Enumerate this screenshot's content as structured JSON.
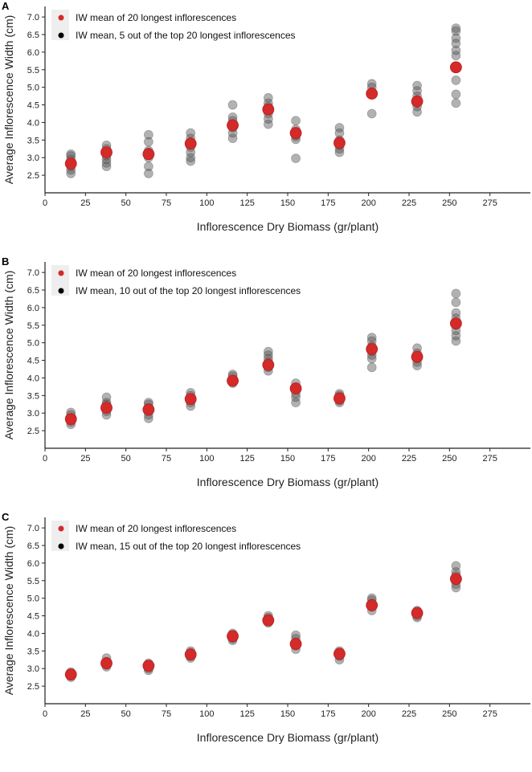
{
  "chart_data": [
    {
      "type": "scatter",
      "panel_label": "A",
      "xlabel": "Inflorescence Dry Biomass (gr/plant)",
      "ylabel": "Average Inflorescence Width (cm)",
      "xlim": [
        0,
        300
      ],
      "ylim": [
        2.0,
        7.3
      ],
      "xticks": [
        "0",
        "25",
        "50",
        "75",
        "100",
        "125",
        "150",
        "175",
        "200",
        "225",
        "250",
        "275"
      ],
      "yticks": [
        "2.5",
        "3.0",
        "3.5",
        "4.0",
        "4.5",
        "5.0",
        "5.5",
        "6.0",
        "6.5",
        "7.0"
      ],
      "legend": [
        "IW mean of 20 longest inflorescences",
        "IW mean, 5 out of the top 20 longest inflorescences"
      ],
      "colors": {
        "mean": "#d42a2a",
        "subsample": "#555555"
      },
      "x": [
        16,
        38,
        64,
        90,
        116,
        138,
        155,
        182,
        202,
        230,
        254
      ],
      "mean_values": [
        2.83,
        3.15,
        3.1,
        3.4,
        3.92,
        4.37,
        3.7,
        3.42,
        4.82,
        4.6,
        5.57
      ],
      "subsample_values": [
        [
          2.55,
          2.65,
          2.75,
          2.85,
          2.95,
          3.05,
          3.1
        ],
        [
          2.75,
          2.85,
          2.95,
          3.05,
          3.15,
          3.25,
          3.35
        ],
        [
          2.55,
          2.75,
          3.0,
          3.15,
          3.2,
          3.45,
          3.65
        ],
        [
          2.9,
          3.0,
          3.15,
          3.3,
          3.45,
          3.55,
          3.7
        ],
        [
          3.55,
          3.7,
          3.85,
          3.95,
          4.05,
          4.15,
          4.5
        ],
        [
          3.95,
          4.1,
          4.25,
          4.35,
          4.45,
          4.55,
          4.7
        ],
        [
          2.98,
          3.52,
          3.6,
          3.65,
          3.8,
          4.05
        ],
        [
          3.15,
          3.25,
          3.35,
          3.45,
          3.5,
          3.7,
          3.85
        ],
        [
          4.25,
          4.85,
          5.0,
          5.1
        ],
        [
          4.3,
          4.45,
          4.55,
          4.75,
          4.9,
          5.05
        ],
        [
          4.55,
          4.8,
          5.2,
          5.55,
          5.9,
          6.05,
          6.25,
          6.4,
          6.6,
          6.68
        ]
      ]
    },
    {
      "type": "scatter",
      "panel_label": "B",
      "xlabel": "Inflorescence Dry Biomass (gr/plant)",
      "ylabel": "Average Inflorescence Width (cm)",
      "xlim": [
        0,
        300
      ],
      "ylim": [
        2.0,
        7.3
      ],
      "xticks": [
        "0",
        "25",
        "50",
        "75",
        "100",
        "125",
        "150",
        "175",
        "200",
        "225",
        "250",
        "275"
      ],
      "yticks": [
        "2.5",
        "3.0",
        "3.5",
        "4.0",
        "4.5",
        "5.0",
        "5.5",
        "6.0",
        "6.5",
        "7.0"
      ],
      "legend": [
        "IW mean of 20 longest inflorescences",
        "IW mean, 10 out of the top 20 longest inflorescences"
      ],
      "colors": {
        "mean": "#d42a2a",
        "subsample": "#555555"
      },
      "x": [
        16,
        38,
        64,
        90,
        116,
        138,
        155,
        182,
        202,
        230,
        254
      ],
      "mean_values": [
        2.83,
        3.15,
        3.1,
        3.4,
        3.92,
        4.37,
        3.7,
        3.42,
        4.82,
        4.6,
        5.55
      ],
      "subsample_values": [
        [
          2.68,
          2.75,
          2.85,
          2.95,
          3.02
        ],
        [
          2.95,
          3.05,
          3.15,
          3.25,
          3.3,
          3.45
        ],
        [
          2.85,
          2.95,
          3.05,
          3.15,
          3.25,
          3.3
        ],
        [
          3.2,
          3.3,
          3.4,
          3.5,
          3.58
        ],
        [
          3.85,
          3.9,
          3.95,
          4.05,
          4.1
        ],
        [
          4.2,
          4.3,
          4.45,
          4.55,
          4.65,
          4.75
        ],
        [
          3.3,
          3.45,
          3.55,
          3.7,
          3.85
        ],
        [
          3.3,
          3.35,
          3.45,
          3.5,
          3.55
        ],
        [
          4.3,
          4.55,
          4.65,
          4.75,
          4.9,
          5.05,
          5.15
        ],
        [
          4.35,
          4.45,
          4.55,
          4.7,
          4.85
        ],
        [
          5.05,
          5.2,
          5.35,
          5.5,
          5.7,
          5.85,
          6.15,
          6.4
        ]
      ]
    },
    {
      "type": "scatter",
      "panel_label": "C",
      "xlabel": "Inflorescence Dry Biomass (gr/plant)",
      "ylabel": "Average Inflorescence Width (cm)",
      "xlim": [
        0,
        300
      ],
      "ylim": [
        2.0,
        7.3
      ],
      "xticks": [
        "0",
        "25",
        "50",
        "75",
        "100",
        "125",
        "150",
        "175",
        "200",
        "225",
        "250",
        "275"
      ],
      "yticks": [
        "2.5",
        "3.0",
        "3.5",
        "4.0",
        "4.5",
        "5.0",
        "5.5",
        "6.0",
        "6.5",
        "7.0"
      ],
      "legend": [
        "IW mean of 20 longest inflorescences",
        "IW mean, 15 out of the top 20 longest inflorescences"
      ],
      "colors": {
        "mean": "#d42a2a",
        "subsample": "#555555"
      },
      "x": [
        16,
        38,
        64,
        90,
        116,
        138,
        155,
        182,
        202,
        230,
        254
      ],
      "mean_values": [
        2.83,
        3.15,
        3.08,
        3.4,
        3.92,
        4.37,
        3.7,
        3.42,
        4.8,
        4.58,
        5.55
      ],
      "subsample_values": [
        [
          2.75,
          2.8,
          2.85,
          2.9
        ],
        [
          3.05,
          3.1,
          3.2,
          3.3
        ],
        [
          2.95,
          3.0,
          3.1,
          3.15
        ],
        [
          3.3,
          3.35,
          3.45,
          3.5
        ],
        [
          3.8,
          3.85,
          3.95,
          4.0
        ],
        [
          4.3,
          4.35,
          4.45,
          4.5
        ],
        [
          3.55,
          3.65,
          3.75,
          3.85,
          3.95
        ],
        [
          3.25,
          3.35,
          3.45,
          3.5
        ],
        [
          4.65,
          4.75,
          4.85,
          4.95,
          5.0
        ],
        [
          4.45,
          4.5,
          4.6,
          4.65
        ],
        [
          5.3,
          5.4,
          5.5,
          5.65,
          5.75,
          5.92
        ]
      ]
    }
  ]
}
